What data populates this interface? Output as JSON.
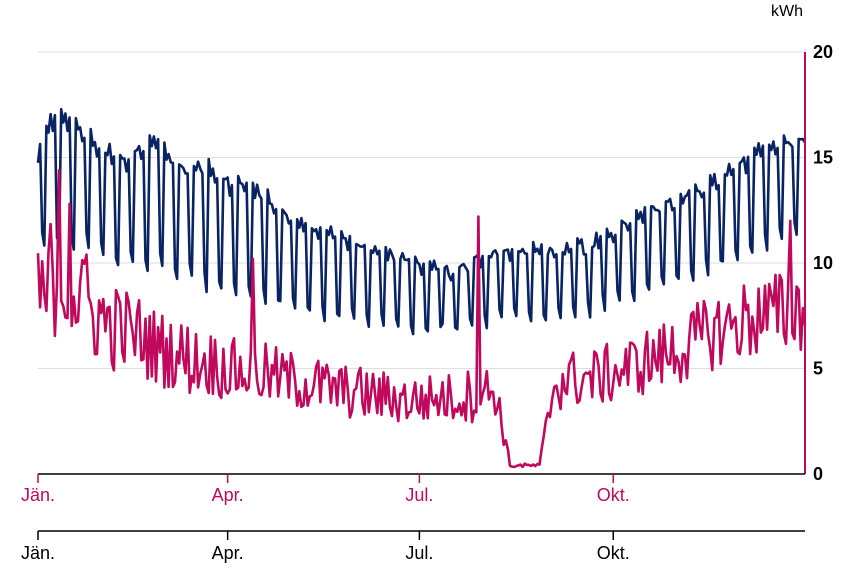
{
  "chart_data": {
    "type": "line",
    "y_unit": "kWh",
    "ylim": [
      0,
      20
    ],
    "y_ticks": [
      "0",
      "5",
      "10",
      "15",
      "20"
    ],
    "grid": true,
    "x_axis_top": {
      "ticks": [
        "Jän.",
        "Apr.",
        "Jul.",
        "Okt."
      ],
      "color": "#c0095d"
    },
    "x_axis_bottom": {
      "ticks": [
        "Jän.",
        "Apr.",
        "Jul.",
        "Okt."
      ],
      "color": "#000000"
    },
    "series": [
      {
        "color": "#0a2463",
        "x_unit": "day of year",
        "x": [
          1,
          8,
          15,
          22,
          29,
          36,
          43,
          50,
          57,
          64,
          71,
          78,
          85,
          92,
          99,
          106,
          113,
          120,
          127,
          134,
          141,
          148,
          155,
          162,
          169,
          176,
          183,
          190,
          197,
          204,
          211,
          218,
          225,
          232,
          239,
          246,
          253,
          260,
          267,
          274,
          281,
          288,
          295,
          302,
          309,
          316,
          323,
          330,
          337,
          344,
          351,
          358,
          365
        ],
        "peak": [
          15.5,
          17.0,
          17.2,
          16.5,
          15.8,
          15.3,
          15.0,
          15.5,
          16.2,
          15.2,
          14.5,
          14.8,
          14.6,
          14.0,
          14.0,
          13.5,
          13.0,
          12.3,
          12.0,
          11.8,
          11.5,
          11.3,
          11.0,
          10.8,
          10.5,
          10.3,
          10.0,
          9.8,
          9.7,
          10.0,
          10.3,
          10.8,
          10.6,
          10.7,
          10.8,
          10.5,
          11.0,
          10.8,
          11.2,
          11.5,
          12.0,
          12.5,
          12.8,
          13.0,
          13.4,
          13.7,
          14.0,
          14.6,
          15.0,
          15.5,
          15.7,
          15.8,
          16.0
        ],
        "trough": [
          11.0,
          11.0,
          10.5,
          10.8,
          10.5,
          10.0,
          10.0,
          9.8,
          9.8,
          9.5,
          9.3,
          9.0,
          8.8,
          8.5,
          8.3,
          8.2,
          8.0,
          7.8,
          7.5,
          7.5,
          7.3,
          7.2,
          7.0,
          7.0,
          6.8,
          6.7,
          6.7,
          6.8,
          6.9,
          7.0,
          7.0,
          7.1,
          7.3,
          7.2,
          7.3,
          7.5,
          7.5,
          7.6,
          7.8,
          8.0,
          8.2,
          8.5,
          8.8,
          9.0,
          9.2,
          9.6,
          9.8,
          10.2,
          10.5,
          10.8,
          11.0,
          11.2,
          11.5
        ]
      },
      {
        "color": "#c0095d",
        "x_unit": "day of year",
        "x": [
          1,
          8,
          15,
          22,
          29,
          36,
          43,
          50,
          57,
          64,
          71,
          78,
          85,
          92,
          99,
          106,
          113,
          120,
          127,
          134,
          141,
          148,
          155,
          162,
          169,
          176,
          183,
          190,
          197,
          204,
          211,
          218,
          225,
          232,
          239,
          246,
          253,
          260,
          267,
          274,
          281,
          288,
          295,
          302,
          309,
          316,
          323,
          330,
          337,
          344,
          351,
          358,
          365
        ],
        "mean": [
          7.8,
          9.5,
          9.0,
          8.0,
          7.5,
          7.0,
          6.8,
          6.5,
          6.0,
          5.8,
          5.5,
          5.3,
          5.2,
          5.0,
          4.8,
          4.8,
          4.6,
          4.5,
          4.3,
          4.2,
          4.0,
          3.9,
          3.8,
          3.7,
          3.6,
          3.5,
          3.5,
          3.6,
          3.6,
          3.7,
          3.8,
          4.0,
          0.4,
          0.4,
          0.4,
          4.3,
          4.5,
          4.5,
          4.6,
          4.8,
          5.0,
          5.3,
          5.5,
          5.8,
          6.0,
          6.5,
          6.8,
          7.0,
          7.3,
          7.5,
          7.5,
          7.8,
          8.0
        ],
        "spread": [
          3.0,
          3.0,
          2.8,
          2.5,
          2.3,
          2.2,
          2.0,
          2.0,
          1.8,
          1.8,
          1.8,
          1.6,
          1.6,
          1.5,
          1.5,
          1.5,
          1.5,
          1.4,
          1.4,
          1.4,
          1.3,
          1.3,
          1.3,
          1.3,
          1.2,
          1.2,
          1.2,
          1.2,
          1.2,
          1.3,
          1.3,
          1.3,
          0.1,
          0.1,
          0.1,
          1.4,
          1.4,
          1.4,
          1.4,
          1.5,
          1.5,
          1.6,
          1.6,
          1.7,
          1.7,
          1.8,
          1.8,
          1.9,
          2.0,
          2.0,
          2.1,
          2.2,
          2.3
        ]
      }
    ],
    "spikes": [
      {
        "series": 1,
        "day": 4,
        "value": 8.5
      },
      {
        "series": 1,
        "day": 11,
        "value": 14.4
      },
      {
        "series": 1,
        "day": 16,
        "value": 12.8
      },
      {
        "series": 1,
        "day": 24,
        "value": 10.4
      },
      {
        "series": 1,
        "day": 103,
        "value": 10.2
      },
      {
        "series": 1,
        "day": 210,
        "value": 12.2
      },
      {
        "series": 1,
        "day": 358,
        "value": 12.0
      }
    ]
  }
}
